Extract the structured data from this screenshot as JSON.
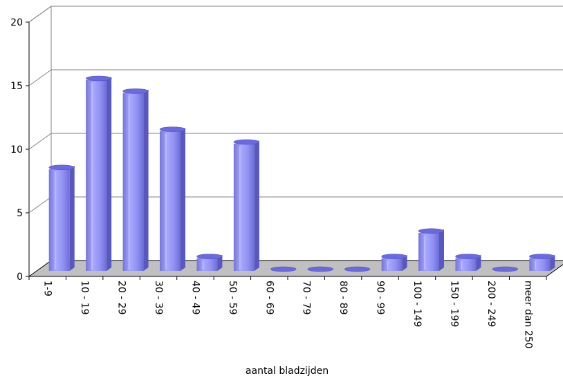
{
  "chart_data": {
    "type": "bar",
    "title": "",
    "xlabel": "aantal bladzijden",
    "ylabel": "",
    "ylim": [
      0,
      20
    ],
    "yticks": [
      0,
      5,
      10,
      15,
      20
    ],
    "grid": true,
    "legend": "none",
    "bar_color": "#8f8ff0",
    "categories": [
      "1-9",
      "10 - 19",
      "20 - 29",
      "30 - 39",
      "40 - 49",
      "50 - 59",
      "60 - 69",
      "70 - 79",
      "80 - 89",
      "90 - 99",
      "100 - 149",
      "150 - 199",
      "200 - 249",
      "meer dan 250"
    ],
    "values": [
      8,
      15,
      14,
      11,
      1,
      10,
      0,
      0,
      0,
      1,
      3,
      1,
      0,
      1
    ]
  }
}
